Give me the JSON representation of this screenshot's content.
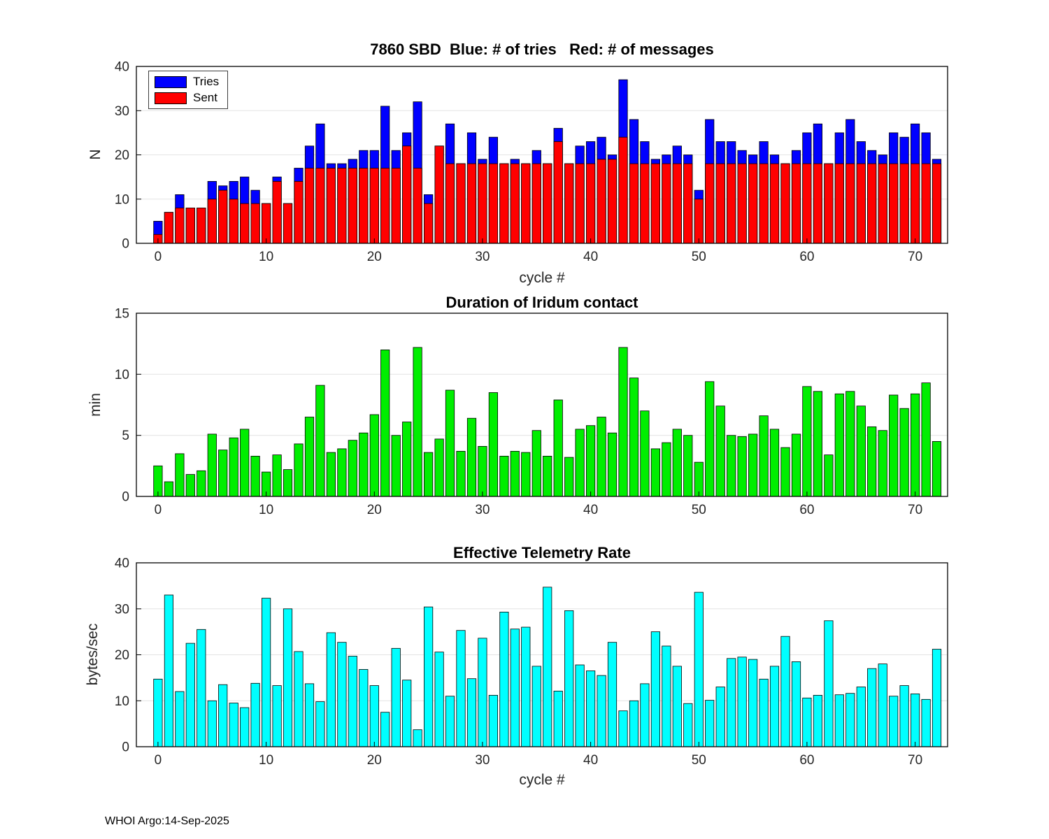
{
  "figure": {
    "footer": "WHOI Argo:14-Sep-2025",
    "background": "#ffffff"
  },
  "chart_data": [
    {
      "type": "bar",
      "mode": "overlay",
      "title": "7860 SBD  Blue: # of tries   Red: # of messages",
      "xlabel": "cycle #",
      "ylabel": "N",
      "xlim": [
        -2,
        73
      ],
      "ylim": [
        0,
        40
      ],
      "xticks": [
        0,
        10,
        20,
        30,
        40,
        50,
        60,
        70
      ],
      "yticks": [
        0,
        10,
        20,
        30,
        40
      ],
      "bar_width": 0.8,
      "grid": "y",
      "legend_location": "northwest",
      "x": [
        0,
        1,
        2,
        3,
        4,
        5,
        6,
        7,
        8,
        9,
        10,
        11,
        12,
        13,
        14,
        15,
        16,
        17,
        18,
        19,
        20,
        21,
        22,
        23,
        24,
        25,
        26,
        27,
        28,
        29,
        30,
        31,
        32,
        33,
        34,
        35,
        36,
        37,
        38,
        39,
        40,
        41,
        42,
        43,
        44,
        45,
        46,
        47,
        48,
        49,
        50,
        51,
        52,
        53,
        54,
        55,
        56,
        57,
        58,
        59,
        60,
        61,
        62,
        63,
        64,
        65,
        66,
        67,
        68,
        69,
        70,
        71,
        72
      ],
      "series": [
        {
          "name": "Tries",
          "color": "#0000ff",
          "values": [
            5,
            7,
            11,
            8,
            8,
            14,
            13,
            14,
            15,
            12,
            9,
            15,
            9,
            17,
            22,
            27,
            18,
            18,
            19,
            21,
            21,
            31,
            21,
            25,
            32,
            11,
            22,
            27,
            18,
            25,
            19,
            24,
            18,
            19,
            18,
            21,
            18,
            26,
            18,
            22,
            23,
            24,
            20,
            37,
            28,
            23,
            19,
            20,
            22,
            20,
            12,
            28,
            23,
            23,
            21,
            20,
            23,
            20,
            18,
            21,
            25,
            27,
            18,
            25,
            28,
            23,
            21,
            20,
            25,
            24,
            27,
            25,
            19
          ]
        },
        {
          "name": "Sent",
          "color": "#ff0000",
          "values": [
            2,
            7,
            8,
            8,
            8,
            10,
            12,
            10,
            9,
            9,
            9,
            14,
            9,
            14,
            17,
            17,
            17,
            17,
            17,
            17,
            17,
            17,
            17,
            22,
            17,
            9,
            22,
            18,
            18,
            18,
            18,
            18,
            18,
            18,
            18,
            18,
            18,
            23,
            18,
            18,
            18,
            19,
            19,
            24,
            18,
            18,
            18,
            18,
            18,
            18,
            10,
            18,
            18,
            18,
            18,
            18,
            18,
            18,
            18,
            18,
            18,
            18,
            18,
            18,
            18,
            18,
            18,
            18,
            18,
            18,
            18,
            18,
            18
          ]
        }
      ]
    },
    {
      "type": "bar",
      "title": "Duration of Iridum contact",
      "xlabel": "",
      "ylabel": "min",
      "xlim": [
        -2,
        73
      ],
      "ylim": [
        0,
        15
      ],
      "xticks": [
        0,
        10,
        20,
        30,
        40,
        50,
        60,
        70
      ],
      "yticks": [
        0,
        5,
        10,
        15
      ],
      "bar_width": 0.8,
      "grid": "y",
      "x": [
        0,
        1,
        2,
        3,
        4,
        5,
        6,
        7,
        8,
        9,
        10,
        11,
        12,
        13,
        14,
        15,
        16,
        17,
        18,
        19,
        20,
        21,
        22,
        23,
        24,
        25,
        26,
        27,
        28,
        29,
        30,
        31,
        32,
        33,
        34,
        35,
        36,
        37,
        38,
        39,
        40,
        41,
        42,
        43,
        44,
        45,
        46,
        47,
        48,
        49,
        50,
        51,
        52,
        53,
        54,
        55,
        56,
        57,
        58,
        59,
        60,
        61,
        62,
        63,
        64,
        65,
        66,
        67,
        68,
        69,
        70,
        71,
        72
      ],
      "series": [
        {
          "name": "Duration",
          "color": "#00ee00",
          "values": [
            2.5,
            1.2,
            3.5,
            1.8,
            2.1,
            5.1,
            3.8,
            4.8,
            5.5,
            3.3,
            2.0,
            3.4,
            2.2,
            4.3,
            6.5,
            9.1,
            3.6,
            3.9,
            4.6,
            5.2,
            6.7,
            12.0,
            5.0,
            6.1,
            12.2,
            3.6,
            4.7,
            8.7,
            3.7,
            6.4,
            4.1,
            8.5,
            3.3,
            3.7,
            3.6,
            5.4,
            3.3,
            7.9,
            3.2,
            5.5,
            5.8,
            6.5,
            5.2,
            12.2,
            9.7,
            7.0,
            3.9,
            4.4,
            5.5,
            5.0,
            2.8,
            9.4,
            7.4,
            5.0,
            4.9,
            5.1,
            6.6,
            5.5,
            4.0,
            5.1,
            9.0,
            8.6,
            3.4,
            8.4,
            8.6,
            7.4,
            5.7,
            5.4,
            8.3,
            7.2,
            8.4,
            9.3,
            4.5
          ]
        }
      ]
    },
    {
      "type": "bar",
      "title": "Effective Telemetry Rate",
      "xlabel": "cycle #",
      "ylabel": "bytes/sec",
      "xlim": [
        -2,
        73
      ],
      "ylim": [
        0,
        40
      ],
      "xticks": [
        0,
        10,
        20,
        30,
        40,
        50,
        60,
        70
      ],
      "yticks": [
        0,
        10,
        20,
        30,
        40
      ],
      "bar_width": 0.8,
      "grid": "y",
      "x": [
        0,
        1,
        2,
        3,
        4,
        5,
        6,
        7,
        8,
        9,
        10,
        11,
        12,
        13,
        14,
        15,
        16,
        17,
        18,
        19,
        20,
        21,
        22,
        23,
        24,
        25,
        26,
        27,
        28,
        29,
        30,
        31,
        32,
        33,
        34,
        35,
        36,
        37,
        38,
        39,
        40,
        41,
        42,
        43,
        44,
        45,
        46,
        47,
        48,
        49,
        50,
        51,
        52,
        53,
        54,
        55,
        56,
        57,
        58,
        59,
        60,
        61,
        62,
        63,
        64,
        65,
        66,
        67,
        68,
        69,
        70,
        71,
        72
      ],
      "series": [
        {
          "name": "Rate",
          "color": "#00ffff",
          "values": [
            14.7,
            33.0,
            12.0,
            22.5,
            25.5,
            10.0,
            13.5,
            9.5,
            8.5,
            13.8,
            32.3,
            13.3,
            30.0,
            20.7,
            13.7,
            9.8,
            24.8,
            22.7,
            19.7,
            16.8,
            13.3,
            7.5,
            21.4,
            14.5,
            3.7,
            30.4,
            20.6,
            11.0,
            25.3,
            14.8,
            23.6,
            11.2,
            29.3,
            25.6,
            26.0,
            17.5,
            34.7,
            12.1,
            29.6,
            17.8,
            16.5,
            15.5,
            22.7,
            7.8,
            10.0,
            13.7,
            25.0,
            21.9,
            17.5,
            9.4,
            33.6,
            10.1,
            13.0,
            19.2,
            19.5,
            19.0,
            14.7,
            17.5,
            24.0,
            18.5,
            10.6,
            11.2,
            27.4,
            11.3,
            11.6,
            13.0,
            17.0,
            18.0,
            11.0,
            13.3,
            11.5,
            10.3,
            21.2
          ]
        }
      ]
    }
  ]
}
